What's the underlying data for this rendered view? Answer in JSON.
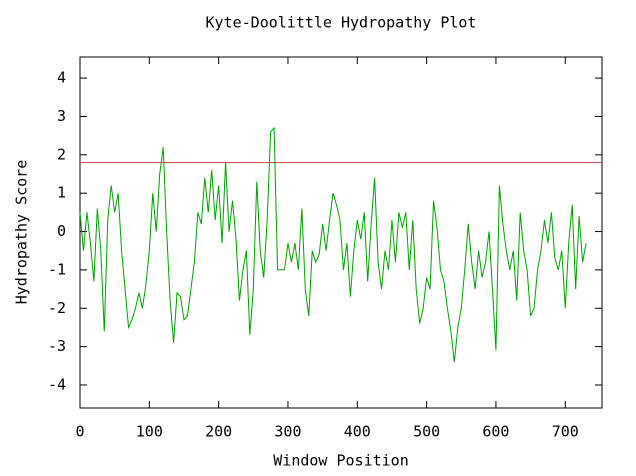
{
  "chart_data": {
    "type": "line",
    "title": "Kyte-Doolittle Hydropathy Plot",
    "x_label": "Window Position",
    "y_label": "Hydropathy Score",
    "xlim": [
      0,
      753
    ],
    "ylim": [
      -4.6,
      4.55
    ],
    "xticks": [
      0,
      100,
      200,
      300,
      400,
      500,
      600,
      700
    ],
    "yticks": [
      -4,
      -3,
      -2,
      -1,
      0,
      1,
      2,
      3,
      4
    ],
    "grid": false,
    "threshold": 1.8,
    "threshold_color": "#d05050",
    "x": [
      0,
      5,
      10,
      15,
      20,
      25,
      30,
      35,
      40,
      45,
      50,
      55,
      60,
      65,
      70,
      75,
      80,
      85,
      90,
      95,
      100,
      105,
      110,
      115,
      120,
      125,
      130,
      135,
      140,
      145,
      150,
      155,
      160,
      165,
      170,
      175,
      180,
      185,
      190,
      195,
      200,
      205,
      210,
      215,
      220,
      225,
      230,
      235,
      240,
      245,
      250,
      255,
      260,
      265,
      270,
      275,
      280,
      285,
      290,
      295,
      300,
      305,
      310,
      315,
      320,
      325,
      330,
      335,
      340,
      345,
      350,
      355,
      360,
      365,
      370,
      375,
      380,
      385,
      390,
      395,
      400,
      405,
      410,
      415,
      420,
      425,
      430,
      435,
      440,
      445,
      450,
      455,
      460,
      465,
      470,
      475,
      480,
      485,
      490,
      495,
      500,
      505,
      510,
      515,
      520,
      525,
      530,
      535,
      540,
      545,
      550,
      555,
      560,
      565,
      570,
      575,
      580,
      585,
      590,
      595,
      600,
      605,
      610,
      615,
      620,
      625,
      630,
      635,
      640,
      645,
      650,
      655,
      660,
      665,
      670,
      675,
      680,
      685,
      690,
      695,
      700,
      705,
      710,
      715,
      720,
      725,
      730
    ],
    "series": [
      {
        "color": "#00a000",
        "values": [
          0.5,
          -0.5,
          0.5,
          -0.3,
          -1.3,
          0.6,
          -0.5,
          -2.6,
          0.3,
          1.2,
          0.5,
          1.0,
          -0.5,
          -1.5,
          -2.5,
          -2.3,
          -2.0,
          -1.6,
          -2.0,
          -1.4,
          -0.5,
          1.0,
          0,
          1.5,
          2.2,
          0,
          -1.8,
          -2.9,
          -1.6,
          -1.7,
          -2.3,
          -2.2,
          -1.5,
          -0.8,
          0.5,
          0.2,
          1.4,
          0.5,
          1.6,
          0.3,
          1.2,
          -0.3,
          1.8,
          0,
          0.8,
          -0.2,
          -1.8,
          -1.0,
          -0.5,
          -2.7,
          -1.5,
          1.3,
          -0.5,
          -1.2,
          0.3,
          2.6,
          2.7,
          -1.0,
          -1.0,
          -1.0,
          -0.3,
          -0.8,
          -0.3,
          -1.0,
          0.6,
          -1.5,
          -2.2,
          -0.5,
          -0.8,
          -0.6,
          0.2,
          -0.5,
          0.3,
          1.0,
          0.7,
          0.3,
          -1.0,
          -0.3,
          -1.7,
          -0.5,
          0.3,
          -0.2,
          0.5,
          -1.3,
          0.2,
          1.4,
          -0.8,
          -1.5,
          -0.5,
          -1.0,
          0.3,
          -0.8,
          0.5,
          0.1,
          0.5,
          -1.0,
          0.3,
          -1.5,
          -2.4,
          -2.0,
          -1.2,
          -1.5,
          0.8,
          0.1,
          -1.0,
          -1.3,
          -2.0,
          -2.6,
          -3.4,
          -2.5,
          -2.0,
          -1.0,
          0.2,
          -0.8,
          -1.5,
          -0.5,
          -1.2,
          -0.8,
          0.0,
          -1.5,
          -3.1,
          1.2,
          0.2,
          -0.5,
          -1.0,
          -0.5,
          -1.8,
          0.5,
          -0.5,
          -1.0,
          -2.2,
          -2.0,
          -1.0,
          -0.5,
          0.3,
          -0.3,
          0.5,
          -0.7,
          -1.0,
          -0.5,
          -2.0,
          -0.3,
          0.7,
          -1.5,
          0.4,
          -0.8,
          -0.3
        ]
      }
    ]
  }
}
